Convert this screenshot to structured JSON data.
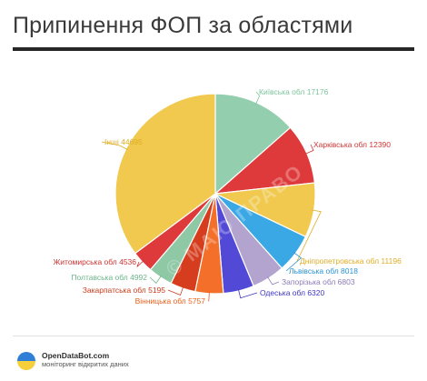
{
  "title": "Припинення ФОП за областями",
  "chart_data": {
    "type": "pie",
    "title": "Припинення ФОП за областями",
    "slices": [
      {
        "label": "Київська обл",
        "value": 17176,
        "color": "#93cfae"
      },
      {
        "label": "Харківська обл",
        "value": 12390,
        "color": "#de3a3b"
      },
      {
        "label": "Дніпропетровська обл",
        "value": 11196,
        "color": "#f0c94e"
      },
      {
        "label": "Львівська обл",
        "value": 8018,
        "color": "#3aa8e4"
      },
      {
        "label": "Запорізька обл",
        "value": 6803,
        "color": "#b3a3cf"
      },
      {
        "label": "Одеська обл",
        "value": 6320,
        "color": "#5249d6"
      },
      {
        "label": "Вінницька обл",
        "value": 5757,
        "color": "#f36f2a"
      },
      {
        "label": "Закарпатська обл",
        "value": 5195,
        "color": "#d63d1e"
      },
      {
        "label": "Полтавська обл",
        "value": 4992,
        "color": "#8ec8a4"
      },
      {
        "label": "Житомирська обл",
        "value": 4536,
        "color": "#de3a3b"
      },
      {
        "label": "Інші",
        "value": 44695,
        "color": "#f0c94e"
      }
    ],
    "watermark": "© МАЮ ПРАВО"
  },
  "footer": {
    "brand": "OpenDataBot.com",
    "tagline": "моніторинг відкритих даних"
  },
  "colors": {
    "text": "#3a3a3a",
    "rule": "#262626"
  }
}
